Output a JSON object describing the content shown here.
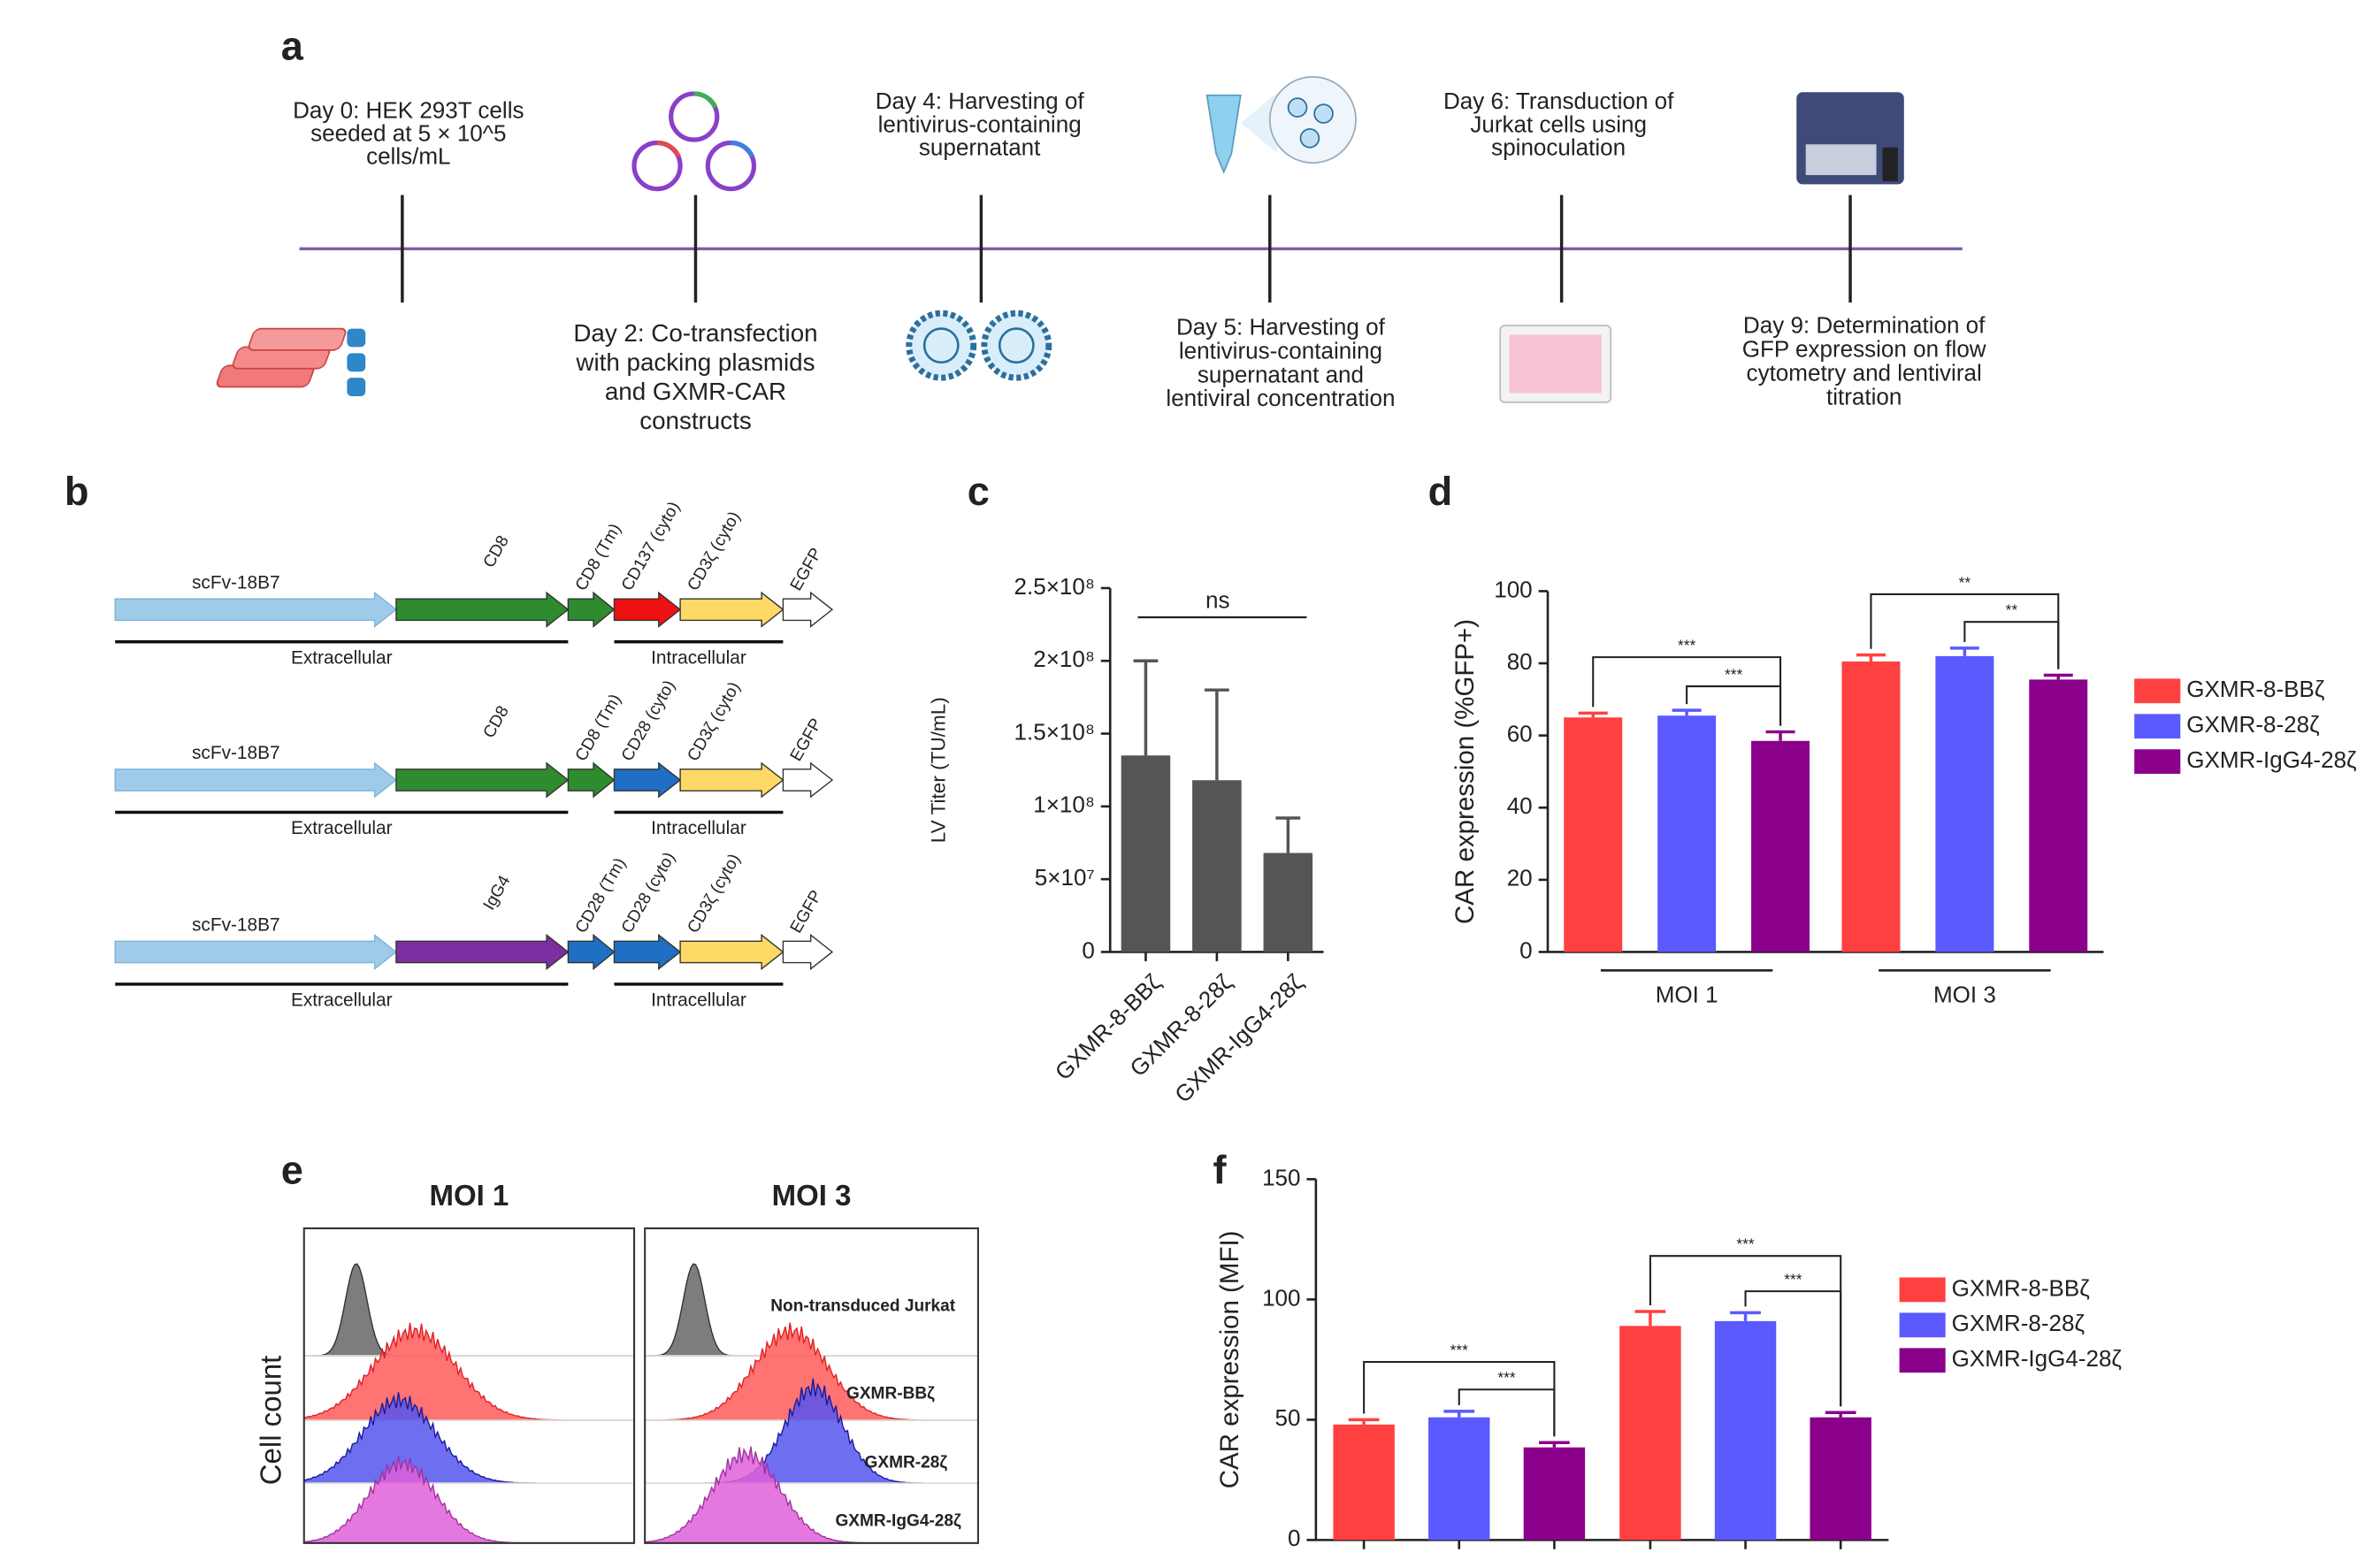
{
  "panels": [
    "a",
    "b",
    "c",
    "d",
    "e",
    "f"
  ],
  "timeline": {
    "steps": [
      {
        "lines": [
          "Day 0: HEK 293T cells",
          "seeded at 5 × 10^5",
          "cells/mL"
        ]
      },
      {
        "lines": [
          "Day 2: Co-transfection",
          "with packing plasmids",
          "and GXMR-CAR",
          "constructs"
        ]
      },
      {
        "lines": [
          "Day 4: Harvesting of",
          "lentivirus-containing",
          "supernatant"
        ]
      },
      {
        "lines": [
          "Day 5: Harvesting of",
          "lentivirus-containing",
          "supernatant and",
          "lentiviral concentration"
        ]
      },
      {
        "lines": [
          "Day 6: Transduction of",
          "Jurkat cells using",
          "spinoculation"
        ]
      },
      {
        "lines": [
          "Day 9: Determination of",
          "GFP expression on flow",
          "cytometry and lentiviral",
          "titration"
        ]
      }
    ]
  },
  "constructs": [
    {
      "segments": [
        {
          "label": "scFv-18B7",
          "color": "#9fcbea"
        },
        {
          "label": "CD8",
          "color": "#2e8b2e"
        },
        {
          "label": "CD8 (Tm)",
          "color": "#2e8b2e"
        },
        {
          "label": "CD137 (cyto)",
          "color": "#ee1111"
        },
        {
          "label": "CD3ζ (cyto)",
          "color": "#ffd966"
        },
        {
          "label": "EGFP",
          "color": "#ffffff"
        }
      ],
      "regions": [
        "Extracellular",
        "Intracellular"
      ]
    },
    {
      "segments": [
        {
          "label": "scFv-18B7",
          "color": "#9fcbea"
        },
        {
          "label": "CD8",
          "color": "#2e8b2e"
        },
        {
          "label": "CD8 (Tm)",
          "color": "#2e8b2e"
        },
        {
          "label": "CD28 (cyto)",
          "color": "#1f6fc4"
        },
        {
          "label": "CD3ζ (cyto)",
          "color": "#ffd966"
        },
        {
          "label": "EGFP",
          "color": "#ffffff"
        }
      ],
      "regions": [
        "Extracellular",
        "Intracellular"
      ]
    },
    {
      "segments": [
        {
          "label": "scFv-18B7",
          "color": "#9fcbea"
        },
        {
          "label": "IgG4",
          "color": "#7b2fa0"
        },
        {
          "label": "CD28 (Tm)",
          "color": "#1f6fc4"
        },
        {
          "label": "CD28 (cyto)",
          "color": "#1f6fc4"
        },
        {
          "label": "CD3ζ (cyto)",
          "color": "#ffd966"
        },
        {
          "label": "EGFP",
          "color": "#ffffff"
        }
      ],
      "regions": [
        "Extracellular",
        "Intracellular"
      ]
    }
  ],
  "flow": {
    "columns": [
      "MOI 1",
      "MOI 3"
    ],
    "y_label": "Cell count",
    "labels": [
      {
        "text": "Non-transduced Jurkat",
        "color": "#111111"
      },
      {
        "text": "GXMR-BBζ",
        "color": "#ee2222"
      },
      {
        "text": "GXMR-28ζ",
        "color": "#1a1a99"
      },
      {
        "text": "GXMR-IgG4-28ζ",
        "color": "#8b1a9b"
      }
    ]
  },
  "chart_data": [
    {
      "type": "bar",
      "y_label": "LV Titer (TU/mL)",
      "annotation": "ns",
      "categories": [
        "GXMR-8-BBζ",
        "GXMR-8-28ζ",
        "GXMR-IgG4-28ζ"
      ],
      "values": [
        135000000,
        118000000,
        68000000
      ],
      "errors": [
        65000000,
        62000000,
        24000000
      ],
      "color": "#555555",
      "ylim": [
        0,
        250000000
      ],
      "yticks": [
        0,
        {
          "value": 50000000,
          "label": "5×10⁷"
        },
        {
          "value": 100000000,
          "label": "1×10⁸"
        },
        {
          "value": 150000000,
          "label": "1.5×10⁸"
        },
        {
          "value": 200000000,
          "label": "2×10⁸"
        },
        {
          "value": 250000000,
          "label": "2.5×10⁸"
        }
      ]
    },
    {
      "type": "bar",
      "y_label": "CAR expression (%GFP+)",
      "categories": [
        "MOI 1",
        "MOI 3"
      ],
      "series": [
        {
          "name": "GXMR-8-BBζ",
          "color": "#ff4040",
          "values": [
            65,
            80.5
          ],
          "errors": [
            1.2,
            1.8
          ]
        },
        {
          "name": "GXMR-8-28ζ",
          "color": "#5a5aff",
          "values": [
            65.5,
            82
          ],
          "errors": [
            1.5,
            2.2
          ]
        },
        {
          "name": "GXMR-IgG4-28ζ",
          "color": "#8b008b",
          "values": [
            58.5,
            75.5
          ],
          "errors": [
            2.5,
            1.2
          ]
        }
      ],
      "annotations": [
        "***",
        "***",
        "**",
        "**"
      ],
      "ylim": [
        0,
        100
      ],
      "yticks": [
        0,
        20,
        40,
        60,
        80,
        100
      ]
    },
    {
      "type": "bar",
      "y_label": "CAR expression (MFI)",
      "categories": [
        null,
        null
      ],
      "series": [
        {
          "name": "GXMR-8-BBζ",
          "color": "#ff4040",
          "values": [
            48,
            89
          ],
          "errors": [
            2,
            6
          ]
        },
        {
          "name": "GXMR-8-28ζ",
          "color": "#5a5aff",
          "values": [
            51,
            91
          ],
          "errors": [
            2.5,
            3.5
          ]
        },
        {
          "name": "GXMR-IgG4-28ζ",
          "color": "#8b008b",
          "values": [
            38.5,
            51
          ],
          "errors": [
            2,
            2
          ]
        }
      ],
      "annotations": [
        "***",
        "***",
        "***",
        "***"
      ],
      "ylim": [
        0,
        150
      ],
      "yticks": [
        0,
        50,
        100,
        150
      ]
    }
  ]
}
